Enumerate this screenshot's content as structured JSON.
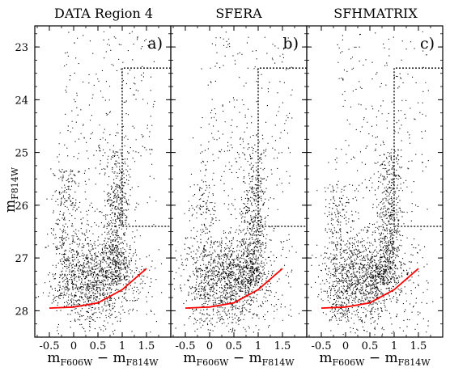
{
  "chart_data": [
    {
      "type": "scatter",
      "title": "DATA Region 4",
      "panel_label": "a)",
      "xlim": [
        -0.8,
        2.0
      ],
      "ylim": [
        28.5,
        22.6
      ],
      "xticks": [
        "-0.5",
        "0",
        "0.5",
        "1",
        "1.5"
      ],
      "xtick_values": [
        -0.5,
        0,
        0.5,
        1,
        1.5
      ],
      "yticks": [
        "23",
        "24",
        "25",
        "26",
        "27",
        "28"
      ],
      "ytick_values": [
        23,
        24,
        25,
        26,
        27,
        28
      ],
      "completeness_curve": {
        "color": "#ff0000",
        "x": [
          -0.5,
          0,
          0.5,
          1.0,
          1.5
        ],
        "y": [
          27.95,
          27.93,
          27.85,
          27.6,
          27.2
        ]
      },
      "selection_box": {
        "x": [
          1.0,
          2.0
        ],
        "y": [
          23.4,
          26.4
        ]
      }
    },
    {
      "type": "scatter",
      "title": "SFERA",
      "panel_label": "b)",
      "xlim": [
        -0.8,
        2.0
      ],
      "ylim": [
        28.5,
        22.6
      ],
      "xticks": [
        "-0.5",
        "0",
        "0.5",
        "1",
        "1.5"
      ],
      "xtick_values": [
        -0.5,
        0,
        0.5,
        1,
        1.5
      ],
      "completeness_curve": {
        "color": "#ff0000",
        "x": [
          -0.5,
          0,
          0.5,
          1.0,
          1.5
        ],
        "y": [
          27.95,
          27.93,
          27.85,
          27.6,
          27.2
        ]
      },
      "selection_box": {
        "x": [
          1.0,
          2.0
        ],
        "y": [
          23.4,
          26.4
        ]
      }
    },
    {
      "type": "scatter",
      "title": "SFHMATRIX",
      "panel_label": "c)",
      "xlim": [
        -0.8,
        2.0
      ],
      "ylim": [
        28.5,
        22.6
      ],
      "xticks": [
        "-0.5",
        "0",
        "0.5",
        "1",
        "1.5"
      ],
      "xtick_values": [
        -0.5,
        0,
        0.5,
        1,
        1.5
      ],
      "completeness_curve": {
        "color": "#ff0000",
        "x": [
          -0.5,
          0,
          0.5,
          1.0,
          1.5
        ],
        "y": [
          27.95,
          27.93,
          27.85,
          27.6,
          27.2
        ]
      },
      "selection_box": {
        "x": [
          1.0,
          2.0
        ],
        "y": [
          23.4,
          26.4
        ]
      }
    }
  ],
  "ylabel": {
    "base": "m",
    "sub": "F814W"
  },
  "xlabel": {
    "base1": "m",
    "sub1": "F606W",
    "op": " − ",
    "base2": "m",
    "sub2": "F814W"
  },
  "colors": {
    "points": "#000000",
    "curve": "#ff0000",
    "frame": "#000000"
  }
}
